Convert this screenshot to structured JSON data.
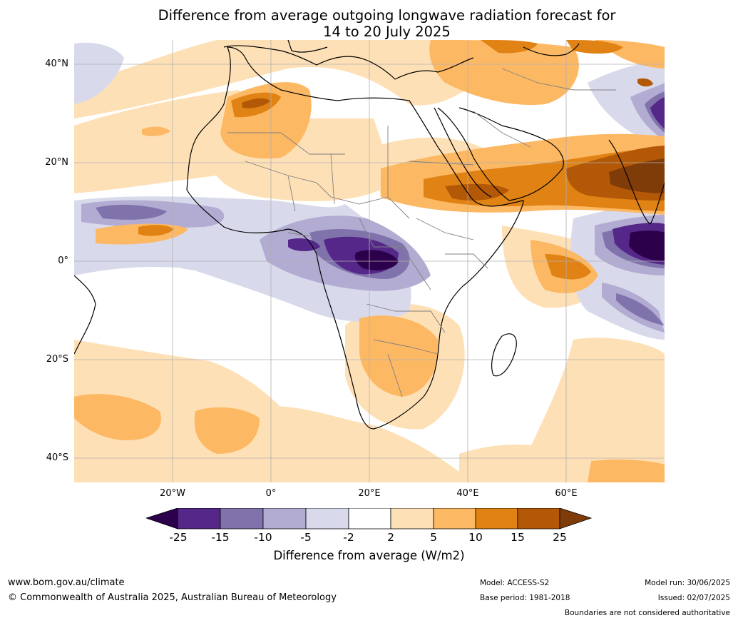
{
  "title": {
    "line1": "Difference from average outgoing longwave radiation forecast for",
    "line2": "14 to 20 July 2025"
  },
  "axes": {
    "lat_ticks": [
      "40°N",
      "20°N",
      "0°",
      "20°S",
      "40°S"
    ],
    "lon_ticks": [
      "20°W",
      "0°",
      "20°E",
      "40°E",
      "60°E"
    ]
  },
  "colorbar": {
    "tick_labels": [
      "-25",
      "-15",
      "-10",
      "-5",
      "-2",
      "2",
      "5",
      "10",
      "15",
      "25"
    ],
    "title": "Difference from average (W/m2)",
    "colors": {
      "below_-25": "#2d004b",
      "-25_-15": "#542788",
      "-15_-10": "#8073ac",
      "-10_-5": "#b2abd2",
      "-5_-2": "#d8daeb",
      "-2_2": "#ffffff",
      "2_5": "#fee0b6",
      "5_10": "#fdb863",
      "10_15": "#e08214",
      "15_25": "#b35806",
      "above_25": "#7f3b08"
    }
  },
  "footer": {
    "website": "www.bom.gov.au/climate",
    "copyright": "© Commonwealth of Australia 2025, Australian Bureau of Meteorology",
    "model": "Model: ACCESS-S2",
    "base_period": "Base period: 1981-2018",
    "model_run": "Model run: 30/06/2025",
    "issued": "Issued: 02/07/2025",
    "disclaimer": "Boundaries are not considered authoritative"
  }
}
